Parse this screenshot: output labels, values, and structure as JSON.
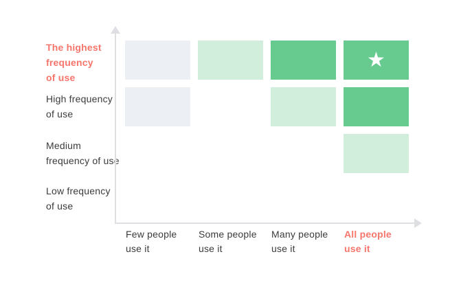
{
  "colors": {
    "background": "#FFFFFF",
    "coral_accent": "#F8756C",
    "text_dark": "#3B3B3B",
    "axis_gray": "#DEDFE2",
    "cell_neutral": "#ECEFF4",
    "cell_green_light": "#D1EDDB",
    "cell_green": "#67CB90",
    "star": "#FFFFFF"
  },
  "icons": {
    "star": "★"
  },
  "chart_data": {
    "type": "heatmap",
    "title": "",
    "legend": "none",
    "grid": "off",
    "x_axis": {
      "label": "",
      "categories": [
        "Few people use it",
        "Some people use it",
        "Many people use it",
        "All people use it"
      ],
      "category_lines": [
        [
          "Few people",
          "use it"
        ],
        [
          "Some people",
          "use it"
        ],
        [
          "Many people",
          "use it"
        ],
        [
          "All people",
          "use it"
        ]
      ],
      "highlighted_category": "All people use it"
    },
    "y_axis": {
      "label": "",
      "categories": [
        "The highest frequency of use",
        "High frequency of use",
        "Medium frequency of use",
        "Low frequency of use"
      ],
      "category_lines": [
        [
          "The highest",
          "frequency",
          "of use"
        ],
        [
          "High frequency",
          "of use"
        ],
        [
          "Medium",
          "frequency of use"
        ],
        [
          "Low frequency",
          "of use"
        ]
      ],
      "highlighted_category": "The highest frequency of use"
    },
    "matrix_rows_top_to_bottom": [
      [
        "neutral",
        "green-light",
        "green",
        "green"
      ],
      [
        "neutral",
        "none",
        "green-light",
        "green"
      ],
      [
        "none",
        "none",
        "none",
        "green-light"
      ],
      [
        "none",
        "none",
        "none",
        "none"
      ]
    ],
    "star_cell": {
      "y_category": "The highest frequency of use",
      "x_category": "All people use it"
    }
  }
}
